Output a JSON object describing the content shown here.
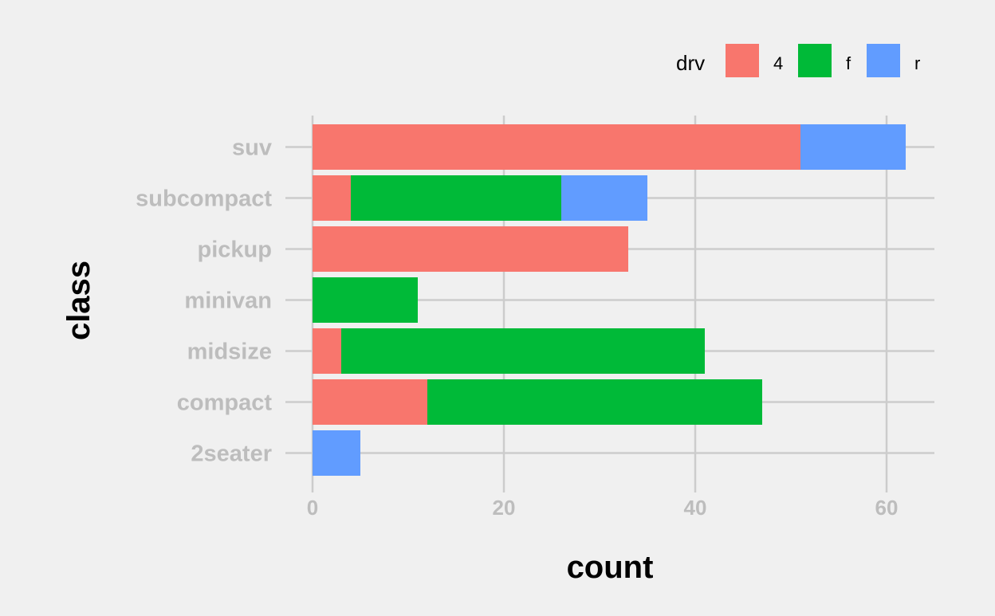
{
  "chart_data": {
    "type": "bar",
    "orientation": "horizontal",
    "stacked": true,
    "xlabel": "count",
    "ylabel": "class",
    "xlim": [
      0,
      65
    ],
    "xticks": [
      0,
      20,
      40,
      60
    ],
    "grid": true,
    "legend_position": "top-right",
    "legend_title": "drv",
    "categories": [
      "2seater",
      "compact",
      "midsize",
      "minivan",
      "pickup",
      "subcompact",
      "suv"
    ],
    "series": [
      {
        "name": "4",
        "color": "#f8766d",
        "values": [
          0,
          12,
          3,
          0,
          33,
          4,
          51
        ]
      },
      {
        "name": "f",
        "color": "#00ba38",
        "values": [
          0,
          35,
          38,
          11,
          0,
          22,
          0
        ]
      },
      {
        "name": "r",
        "color": "#619cff",
        "values": [
          5,
          0,
          0,
          0,
          0,
          9,
          11
        ]
      }
    ]
  }
}
